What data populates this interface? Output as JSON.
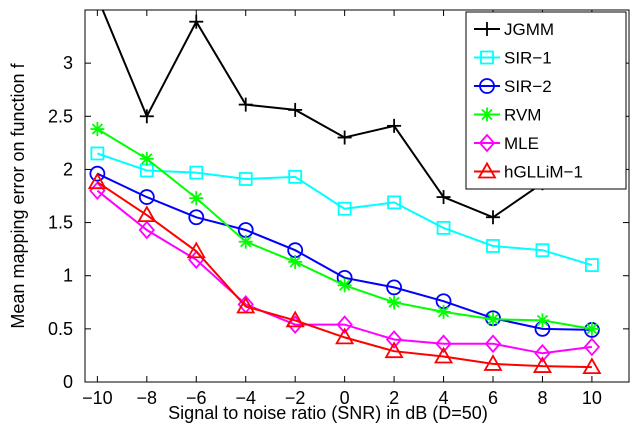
{
  "chart_data": {
    "type": "line",
    "title": "",
    "xlabel": "Signal to noise ratio (SNR) in dB (D=50)",
    "ylabel": "Mean mapping error on function f",
    "xlim": [
      -10.5,
      11.5
    ],
    "ylim": [
      0,
      3.5
    ],
    "x": [
      -10,
      -8,
      -6,
      -4,
      -2,
      0,
      2,
      4,
      6,
      8,
      10
    ],
    "x_ticks": [
      "−10",
      "−8",
      "−6",
      "−4",
      "−2",
      "0",
      "2",
      "4",
      "6",
      "8",
      "10"
    ],
    "y_ticks": [
      {
        "value": 0,
        "label": "0"
      },
      {
        "value": 0.5,
        "label": "0.5"
      },
      {
        "value": 1,
        "label": "1"
      },
      {
        "value": 1.5,
        "label": "1.5"
      },
      {
        "value": 2,
        "label": "2"
      },
      {
        "value": 2.5,
        "label": "2.5"
      },
      {
        "value": 3,
        "label": "3"
      }
    ],
    "grid": false,
    "legend_position": "top-right",
    "series": [
      {
        "name": "JGMM",
        "color": "#000000",
        "marker": "plus",
        "values": [
          3.62,
          2.5,
          3.39,
          2.61,
          2.56,
          2.3,
          2.41,
          1.74,
          1.55,
          1.87,
          1.95
        ]
      },
      {
        "name": "SIR−1",
        "color": "#00ffff",
        "marker": "square",
        "values": [
          2.15,
          1.99,
          1.97,
          1.91,
          1.93,
          1.63,
          1.69,
          1.45,
          1.28,
          1.24,
          1.1
        ]
      },
      {
        "name": "SIR−2",
        "color": "#0000ff",
        "marker": "circle",
        "values": [
          1.96,
          1.74,
          1.55,
          1.43,
          1.24,
          0.98,
          0.89,
          0.76,
          0.6,
          0.5,
          0.49
        ]
      },
      {
        "name": "RVM",
        "color": "#00ff00",
        "marker": "asterisk",
        "values": [
          2.38,
          2.1,
          1.73,
          1.32,
          1.13,
          0.91,
          0.75,
          0.66,
          0.59,
          0.58,
          0.5
        ]
      },
      {
        "name": "MLE",
        "color": "#ff00ff",
        "marker": "diamond",
        "values": [
          1.8,
          1.43,
          1.15,
          0.73,
          0.54,
          0.54,
          0.4,
          0.36,
          0.36,
          0.27,
          0.33
        ]
      },
      {
        "name": "hGLLiM−1",
        "color": "#ff0000",
        "marker": "triangle",
        "values": [
          1.88,
          1.57,
          1.23,
          0.71,
          0.58,
          0.42,
          0.29,
          0.24,
          0.17,
          0.15,
          0.14
        ]
      }
    ]
  }
}
